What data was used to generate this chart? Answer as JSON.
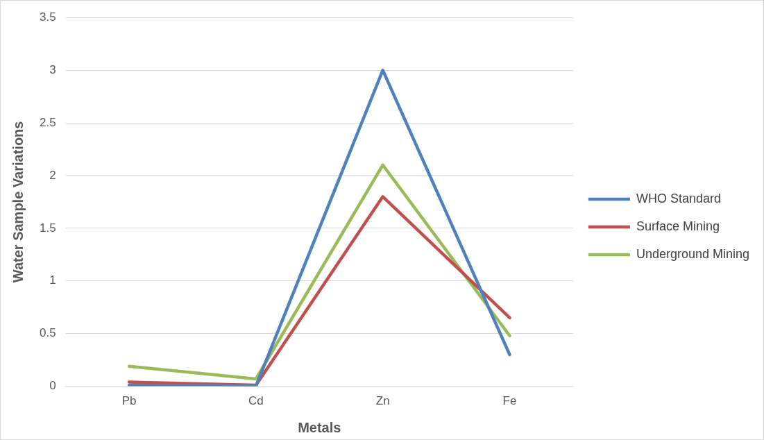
{
  "chart_data": {
    "type": "line",
    "xlabel": "Metals",
    "ylabel": "Water Sample Variations",
    "categories": [
      "Pb",
      "Cd",
      "Zn",
      "Fe"
    ],
    "series": [
      {
        "name": "WHO Standard",
        "color": "#4f81bd",
        "values": [
          0.01,
          0.003,
          3,
          0.3
        ]
      },
      {
        "name": "Surface Mining",
        "color": "#c0504d",
        "values": [
          0.04,
          0.01,
          1.8,
          0.65
        ]
      },
      {
        "name": "Underground Mining",
        "color": "#9bbb59",
        "values": [
          0.19,
          0.07,
          2.1,
          0.48
        ]
      }
    ],
    "ylim": [
      0,
      3.5
    ],
    "yticks": [
      0,
      0.5,
      1,
      1.5,
      2,
      2.5,
      3,
      3.5
    ],
    "grid": "y",
    "legend": "right",
    "marker": "none",
    "line_style": "solid"
  }
}
